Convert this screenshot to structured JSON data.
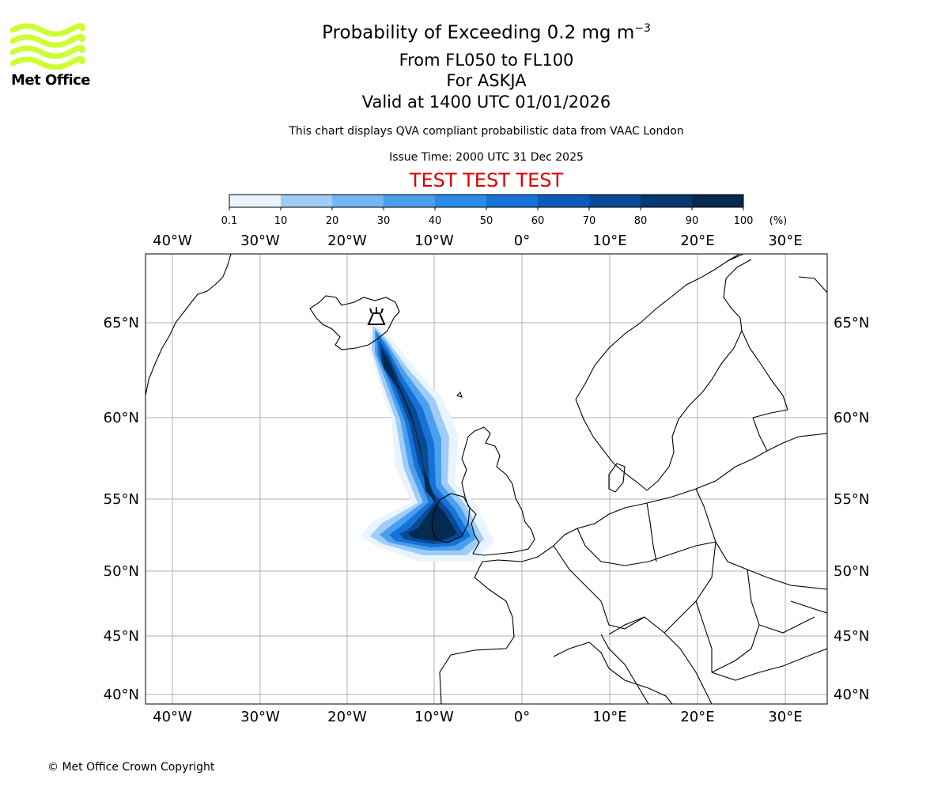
{
  "logo": {
    "name": "Met Office",
    "accent": "#ccff33"
  },
  "title": {
    "line1_prefix": "Probability of Exceeding 0.2 mg m",
    "line1_sup": "−3",
    "line2": "From FL050 to FL100",
    "line3": "For ASKJA",
    "line4": "Valid at 1400 UTC 01/01/2026"
  },
  "subtitle": "This chart displays QVA compliant probabilistic data from VAAC London",
  "issue_time": "Issue Time: 2000 UTC 31 Dec 2025",
  "test_banner": {
    "text": "TEST TEST TEST",
    "color": "#dd0000"
  },
  "colorbar": {
    "ticks": [
      "0.1",
      "10",
      "20",
      "30",
      "40",
      "50",
      "60",
      "70",
      "80",
      "90",
      "100"
    ],
    "unit": "(%)",
    "colors": [
      "#eaf4ff",
      "#c6e2fb",
      "#9fcdf7",
      "#73b6f2",
      "#4aa0ee",
      "#2a8bea",
      "#1672d6",
      "#0b5cb8",
      "#084a96",
      "#063870",
      "#042a52"
    ]
  },
  "map": {
    "lon_ticks": [
      "40°W",
      "30°W",
      "20°W",
      "10°W",
      "0°",
      "10°E",
      "20°E",
      "30°E"
    ],
    "lat_ticks": [
      "65°N",
      "60°N",
      "55°N",
      "50°N",
      "45°N",
      "40°N"
    ],
    "source_volcano": "volcano-icon"
  },
  "copyright": "© Met Office Crown Copyright"
}
